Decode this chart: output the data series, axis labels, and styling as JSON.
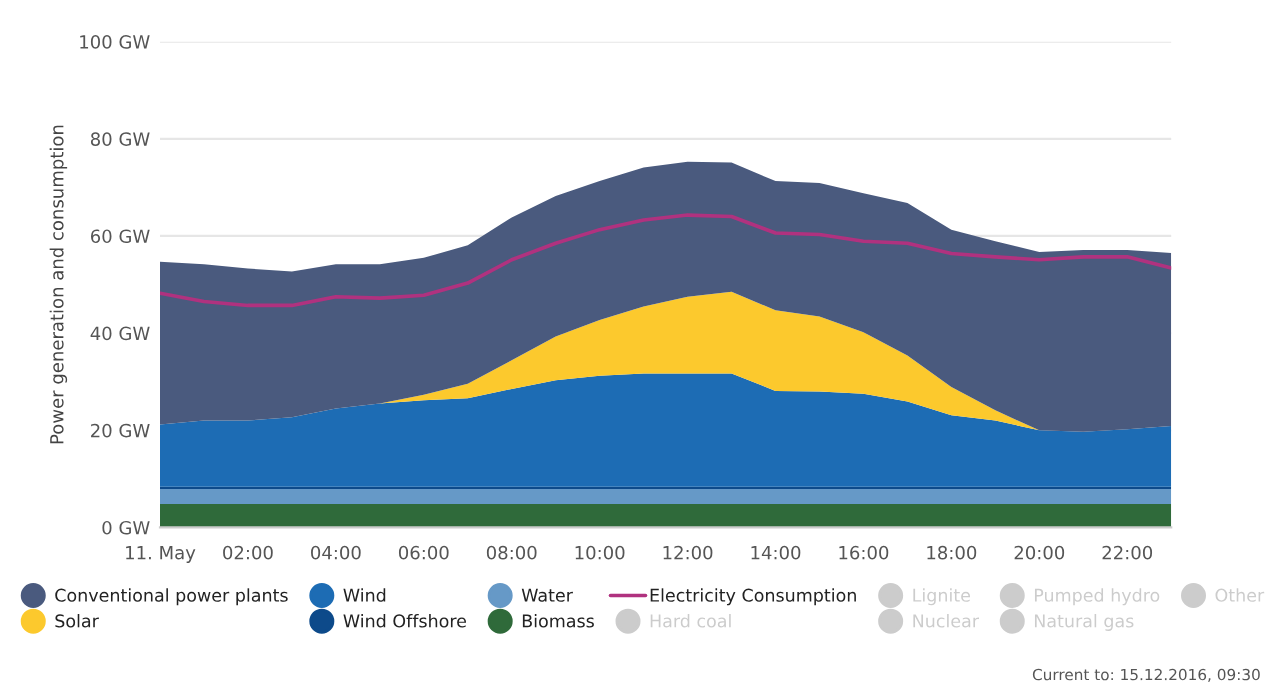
{
  "chart_data": {
    "type": "area",
    "stacked": true,
    "ylabel": "Power generation and consumption",
    "x": [
      0,
      1,
      2,
      3,
      4,
      5,
      6,
      7,
      8,
      9,
      10,
      11,
      12,
      13,
      14,
      15,
      16,
      17,
      18,
      19,
      20,
      21,
      22,
      23
    ],
    "xlim": [
      0,
      23
    ],
    "xticks": [
      {
        "value": 0,
        "label": "11. May"
      },
      {
        "value": 2,
        "label": "02:00"
      },
      {
        "value": 4,
        "label": "04:00"
      },
      {
        "value": 6,
        "label": "06:00"
      },
      {
        "value": 8,
        "label": "08:00"
      },
      {
        "value": 10,
        "label": "10:00"
      },
      {
        "value": 12,
        "label": "12:00"
      },
      {
        "value": 14,
        "label": "14:00"
      },
      {
        "value": 16,
        "label": "16:00"
      },
      {
        "value": 18,
        "label": "18:00"
      },
      {
        "value": 20,
        "label": "20:00"
      },
      {
        "value": 22,
        "label": "22:00"
      }
    ],
    "ylim": [
      0,
      100
    ],
    "yticks": [
      {
        "value": 0,
        "label": "0 GW"
      },
      {
        "value": 20,
        "label": "20 GW"
      },
      {
        "value": 40,
        "label": "40 GW"
      },
      {
        "value": 60,
        "label": "60 GW"
      },
      {
        "value": 80,
        "label": "80 GW"
      },
      {
        "value": 100,
        "label": "100 GW"
      }
    ],
    "grid": "y",
    "legend": "bottom",
    "series": [
      {
        "name": "Biomass",
        "color": "#2f6a3a",
        "values": [
          4.8,
          4.8,
          4.8,
          4.8,
          4.8,
          4.8,
          4.8,
          4.8,
          4.8,
          4.8,
          4.8,
          4.8,
          4.8,
          4.8,
          4.8,
          4.8,
          4.8,
          4.8,
          4.8,
          4.8,
          4.8,
          4.8,
          4.8,
          4.8
        ]
      },
      {
        "name": "Water",
        "color": "#6699c7",
        "values": [
          3.1,
          3.1,
          3.1,
          3.1,
          3.1,
          3.1,
          3.1,
          3.1,
          3.1,
          3.1,
          3.1,
          3.1,
          3.1,
          3.1,
          3.1,
          3.1,
          3.1,
          3.1,
          3.1,
          3.1,
          3.1,
          3.1,
          3.1,
          3.1
        ]
      },
      {
        "name": "Wind Offshore",
        "color": "#0d4a8a",
        "values": [
          0.5,
          0.5,
          0.5,
          0.5,
          0.5,
          0.5,
          0.5,
          0.5,
          0.5,
          0.5,
          0.5,
          0.5,
          0.5,
          0.5,
          0.5,
          0.5,
          0.5,
          0.5,
          0.5,
          0.5,
          0.5,
          0.5,
          0.5,
          0.5
        ]
      },
      {
        "name": "Wind",
        "color": "#1d6cb4",
        "values": [
          12.8,
          13.6,
          13.6,
          14.3,
          16.1,
          17.1,
          17.8,
          18.2,
          20.1,
          21.9,
          22.8,
          23.3,
          23.3,
          23.3,
          19.7,
          19.6,
          19.1,
          17.5,
          14.7,
          13.6,
          11.6,
          11.3,
          11.8,
          12.5
        ]
      },
      {
        "name": "Solar",
        "color": "#fcc92d",
        "values": [
          0,
          0,
          0,
          0,
          0,
          0,
          1.1,
          3.0,
          5.9,
          9.0,
          11.5,
          13.8,
          15.8,
          16.8,
          16.6,
          15.4,
          12.7,
          9.5,
          5.8,
          2.1,
          0,
          0,
          0,
          0
        ]
      },
      {
        "name": "Conventional power plants",
        "color": "#4a5a7e",
        "values": [
          33.5,
          32.2,
          31.3,
          30.0,
          29.7,
          28.7,
          28.2,
          28.5,
          29.4,
          28.9,
          28.6,
          28.6,
          27.8,
          26.6,
          26.6,
          27.5,
          28.6,
          31.4,
          32.4,
          34.8,
          36.7,
          37.4,
          36.9,
          35.6
        ]
      },
      {
        "name": "Electricity Consumption",
        "type": "line",
        "color": "#b0327f",
        "values": [
          48.2,
          46.5,
          45.7,
          45.7,
          47.5,
          47.2,
          47.8,
          50.3,
          55.1,
          58.5,
          61.3,
          63.3,
          64.3,
          64.0,
          60.6,
          60.3,
          58.9,
          58.5,
          56.4,
          55.7,
          55.1,
          55.7,
          55.7,
          53.4
        ]
      },
      {
        "name": "Hard coal",
        "color": "#cccccc",
        "values": [
          null,
          null,
          null,
          null,
          null,
          null,
          null,
          null,
          null,
          null,
          null,
          null,
          null,
          null,
          null,
          null,
          null,
          null,
          null,
          null,
          null,
          null,
          null,
          null
        ]
      },
      {
        "name": "Lignite",
        "color": "#cccccc",
        "values": [
          null,
          null,
          null,
          null,
          null,
          null,
          null,
          null,
          null,
          null,
          null,
          null,
          null,
          null,
          null,
          null,
          null,
          null,
          null,
          null,
          null,
          null,
          null,
          null
        ]
      },
      {
        "name": "Nuclear",
        "color": "#cccccc",
        "values": [
          null,
          null,
          null,
          null,
          null,
          null,
          null,
          null,
          null,
          null,
          null,
          null,
          null,
          null,
          null,
          null,
          null,
          null,
          null,
          null,
          null,
          null,
          null,
          null
        ]
      },
      {
        "name": "Pumped hydro",
        "color": "#cccccc",
        "values": [
          null,
          null,
          null,
          null,
          null,
          null,
          null,
          null,
          null,
          null,
          null,
          null,
          null,
          null,
          null,
          null,
          null,
          null,
          null,
          null,
          null,
          null,
          null,
          null
        ]
      },
      {
        "name": "Natural gas",
        "color": "#cccccc",
        "values": [
          null,
          null,
          null,
          null,
          null,
          null,
          null,
          null,
          null,
          null,
          null,
          null,
          null,
          null,
          null,
          null,
          null,
          null,
          null,
          null,
          null,
          null,
          null,
          null
        ]
      },
      {
        "name": "Other",
        "color": "#cccccc",
        "values": [
          null,
          null,
          null,
          null,
          null,
          null,
          null,
          null,
          null,
          null,
          null,
          null,
          null,
          null,
          null,
          null,
          null,
          null,
          null,
          null,
          null,
          null,
          null,
          null
        ]
      }
    ],
    "annotations": [
      "Current to: 15.12.2016, 09:30"
    ]
  }
}
